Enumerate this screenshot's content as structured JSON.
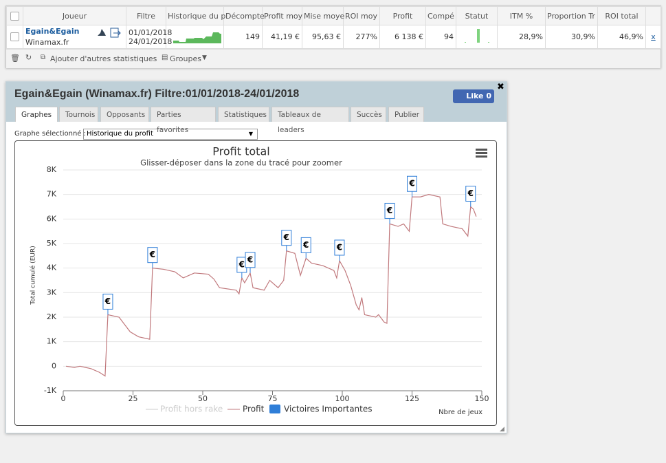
{
  "table": {
    "headers": [
      "Joueur",
      "Filtre",
      "Historique du p",
      "Décompte",
      "Profit moy",
      "Mise moye",
      "ROI moy",
      "Profit",
      "Compé",
      "Statut",
      "ITM %",
      "Proportion Tr",
      "ROI total"
    ],
    "row": {
      "player": "Egain&Egain",
      "site": "Winamax.fr",
      "filter_from": "01/01/2018",
      "filter_to": "24/01/2018",
      "cells": [
        "149",
        "41,19 €",
        "95,63 €",
        "277%",
        "6 138 €",
        "94",
        "28,9%",
        "30,9%",
        "46,9%"
      ],
      "remove": "x"
    }
  },
  "toolbar": {
    "add_stats": "Ajouter d'autres statistiques",
    "groups": "Groupes"
  },
  "panel": {
    "title": "Egain&Egain (Winamax.fr) Filtre:01/01/2018-24/01/2018",
    "like": "Like",
    "like_count": "0",
    "tabs": [
      "Graphes",
      "Tournois",
      "Opposants",
      "Parties favorites",
      "Statistiques",
      "Tableaux de leaders",
      "Succès",
      "Publier"
    ],
    "select_label": "Graphe sélectionné :",
    "select_value": "Historique du profit"
  },
  "chart_data": {
    "type": "line",
    "title": "Profit total",
    "subtitle": "Glisser-déposer dans la zone du tracé pour zoomer",
    "y_label": "Total cumulé (EUR)",
    "x_label": "Nbre de jeux",
    "xlim": [
      0,
      150
    ],
    "xticks": [
      0,
      25,
      50,
      75,
      100,
      125,
      150
    ],
    "ylim": [
      -1000,
      8000
    ],
    "yticks": [
      {
        "value": -1000,
        "label": "-1K"
      },
      0,
      {
        "value": 1000,
        "label": "1K"
      },
      {
        "value": 2000,
        "label": "2K"
      },
      {
        "value": 3000,
        "label": "3K"
      },
      {
        "value": 4000,
        "label": "4K"
      },
      {
        "value": 5000,
        "label": "5K"
      },
      {
        "value": 6000,
        "label": "6K"
      },
      {
        "value": 7000,
        "label": "7K"
      },
      {
        "value": 8000,
        "label": "8K"
      }
    ],
    "grid": true,
    "hidden_series": {
      "name": "Profit hors rake",
      "color": "#cccccc"
    },
    "series": [
      {
        "name": "Profit",
        "color": "#c0787c",
        "x": [
          1,
          4,
          6,
          8,
          10,
          13,
          15,
          16,
          20,
          22,
          24,
          27,
          31,
          32,
          36,
          40,
          43,
          47,
          52,
          54,
          56,
          62,
          63,
          64,
          65,
          67,
          68,
          72,
          74,
          77,
          79,
          80,
          83,
          85,
          87,
          89,
          93,
          97,
          98,
          99,
          101,
          103,
          105,
          106,
          107,
          108,
          112,
          113,
          115,
          116,
          117,
          120,
          122,
          124,
          125,
          128,
          131,
          135,
          136,
          139,
          143,
          145,
          146,
          147,
          148
        ],
        "values": [
          0,
          -50,
          0,
          -50,
          -100,
          -250,
          -400,
          2100,
          2000,
          1700,
          1400,
          1200,
          1100,
          4000,
          3950,
          3850,
          3600,
          3800,
          3750,
          3550,
          3200,
          3100,
          2950,
          3600,
          3400,
          3800,
          3200,
          3100,
          3500,
          3200,
          3500,
          4700,
          4600,
          3700,
          4400,
          4200,
          4100,
          3900,
          3600,
          4300,
          3900,
          3300,
          2500,
          2300,
          2800,
          2100,
          2000,
          2100,
          1800,
          1750,
          5800,
          5700,
          5800,
          5500,
          6900,
          6900,
          7000,
          6900,
          5800,
          5700,
          5600,
          5300,
          6500,
          6400,
          6100
        ]
      }
    ],
    "flags": {
      "name": "Victoires Importantes",
      "color": "#2f7ed8",
      "label": "€",
      "x": [
        16,
        32,
        64,
        67,
        80,
        87,
        99,
        117,
        125,
        146
      ],
      "values": [
        2100,
        4000,
        3600,
        3800,
        4700,
        4400,
        4300,
        5800,
        6900,
        6500
      ]
    }
  }
}
